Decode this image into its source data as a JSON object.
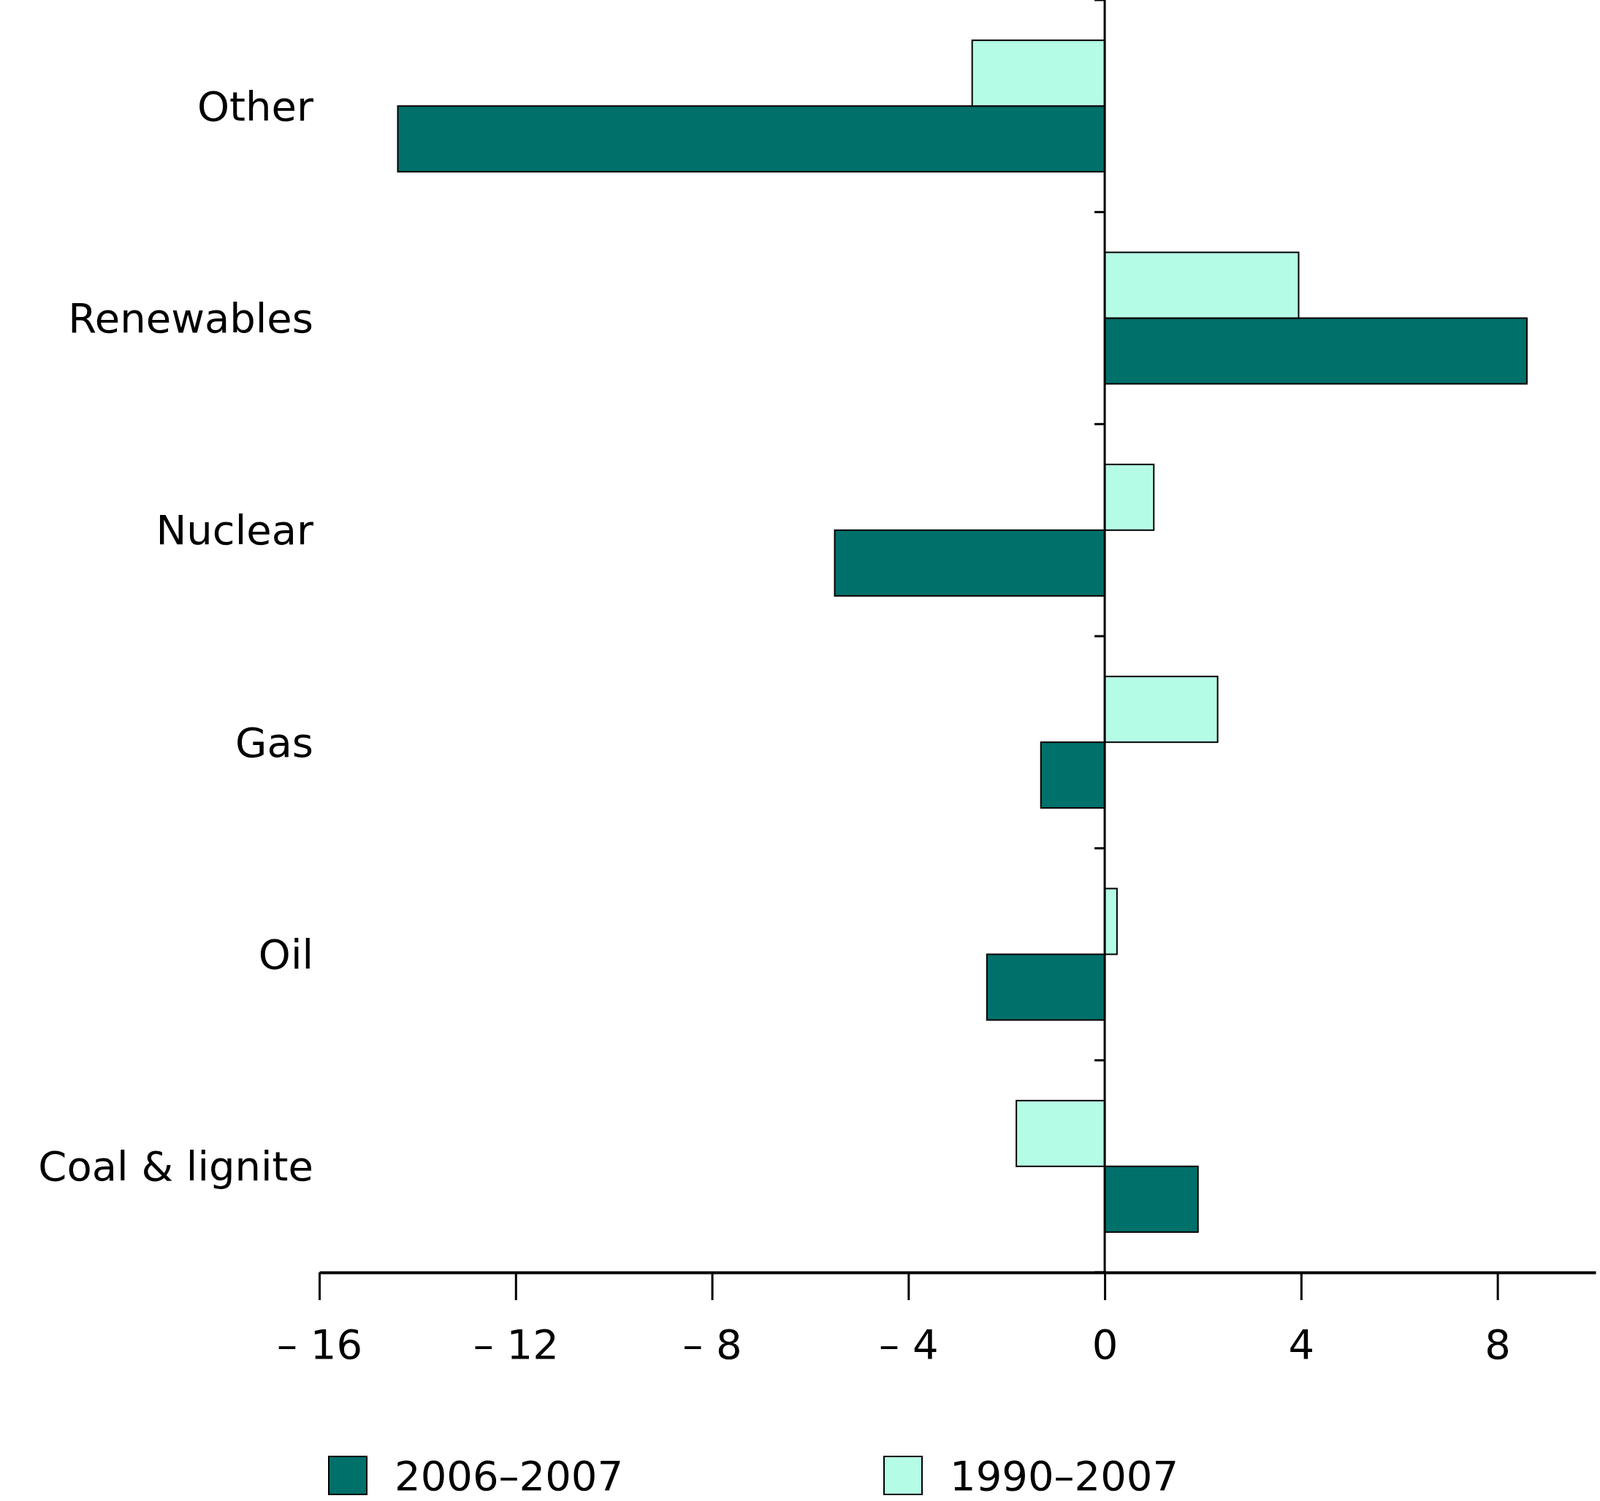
{
  "chart_data": {
    "type": "bar",
    "orientation": "horizontal",
    "categories": [
      "Other",
      "Renewables",
      "Nuclear",
      "Gas",
      "Oil",
      "Coal & lignite"
    ],
    "series": [
      {
        "name": "2006–2007",
        "color": "#00706a",
        "values": [
          -14.4,
          8.6,
          -5.5,
          -1.3,
          -2.4,
          1.9
        ]
      },
      {
        "name": "1990–2007",
        "color": "#b5fce6",
        "values": [
          -2.7,
          3.95,
          1.0,
          2.3,
          0.25,
          -1.8
        ]
      }
    ],
    "xlim": [
      -16,
      10
    ],
    "xticks": [
      {
        "value": -16,
        "label": "– 16"
      },
      {
        "value": -12,
        "label": "– 12"
      },
      {
        "value": -8,
        "label": "– 8"
      },
      {
        "value": -4,
        "label": "– 4"
      },
      0,
      4,
      8
    ],
    "grid": false,
    "legend": "bottom"
  }
}
